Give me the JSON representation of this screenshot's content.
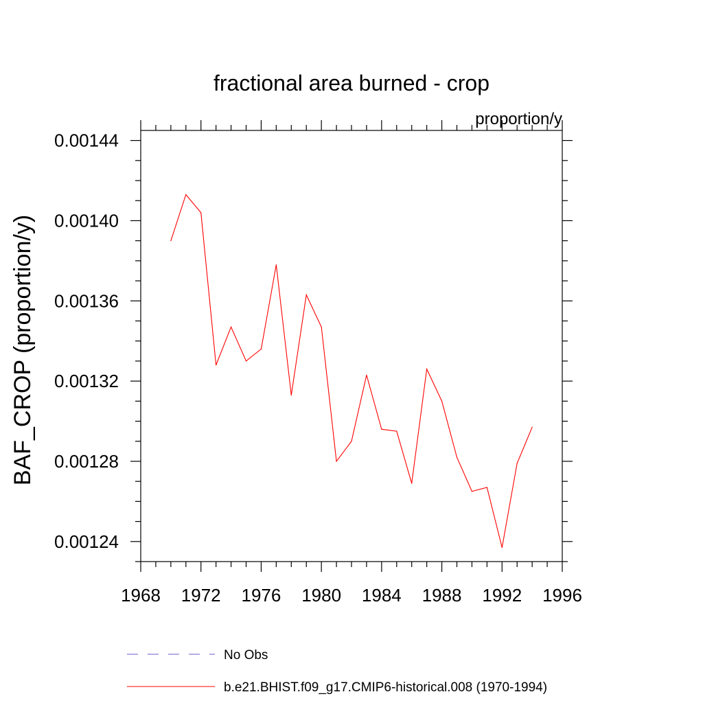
{
  "chart_data": {
    "type": "line",
    "title": "fractional area burned - crop",
    "units_label": "proportion/y",
    "xlabel": "",
    "ylabel": "BAF_CROP  (proportion/y)",
    "xlim": [
      1968,
      1996
    ],
    "ylim": [
      0.00123,
      0.001445
    ],
    "x_ticks": [
      1968,
      1972,
      1976,
      1980,
      1984,
      1988,
      1992,
      1996
    ],
    "x_tick_labels": [
      "1968",
      "1972",
      "1976",
      "1980",
      "1984",
      "1988",
      "1992",
      "1996"
    ],
    "y_ticks": [
      0.00124,
      0.00128,
      0.00132,
      0.00136,
      0.0014,
      0.00144
    ],
    "y_tick_labels": [
      "0.00124",
      "0.00128",
      "0.00132",
      "0.00136",
      "0.00140",
      "0.00144"
    ],
    "grid": false,
    "legend_position": "bottom",
    "series": [
      {
        "name": "No Obs",
        "color": "#6a5acd",
        "style": "dashed",
        "x": [],
        "values": []
      },
      {
        "name": "b.e21.BHIST.f09_g17.CMIP6-historical.008 (1970-1994)",
        "color": "#ff0000",
        "style": "solid",
        "x": [
          1970,
          1971,
          1972,
          1973,
          1974,
          1975,
          1976,
          1977,
          1978,
          1979,
          1980,
          1981,
          1982,
          1983,
          1984,
          1985,
          1986,
          1987,
          1988,
          1989,
          1990,
          1991,
          1992,
          1993,
          1994
        ],
        "values": [
          0.00139,
          0.001413,
          0.001404,
          0.001328,
          0.001347,
          0.00133,
          0.001336,
          0.001378,
          0.001313,
          0.001363,
          0.001347,
          0.00128,
          0.00129,
          0.001323,
          0.001296,
          0.001295,
          0.001269,
          0.001326,
          0.00131,
          0.001282,
          0.001265,
          0.001267,
          0.001237,
          0.001279,
          0.001297
        ]
      }
    ]
  }
}
